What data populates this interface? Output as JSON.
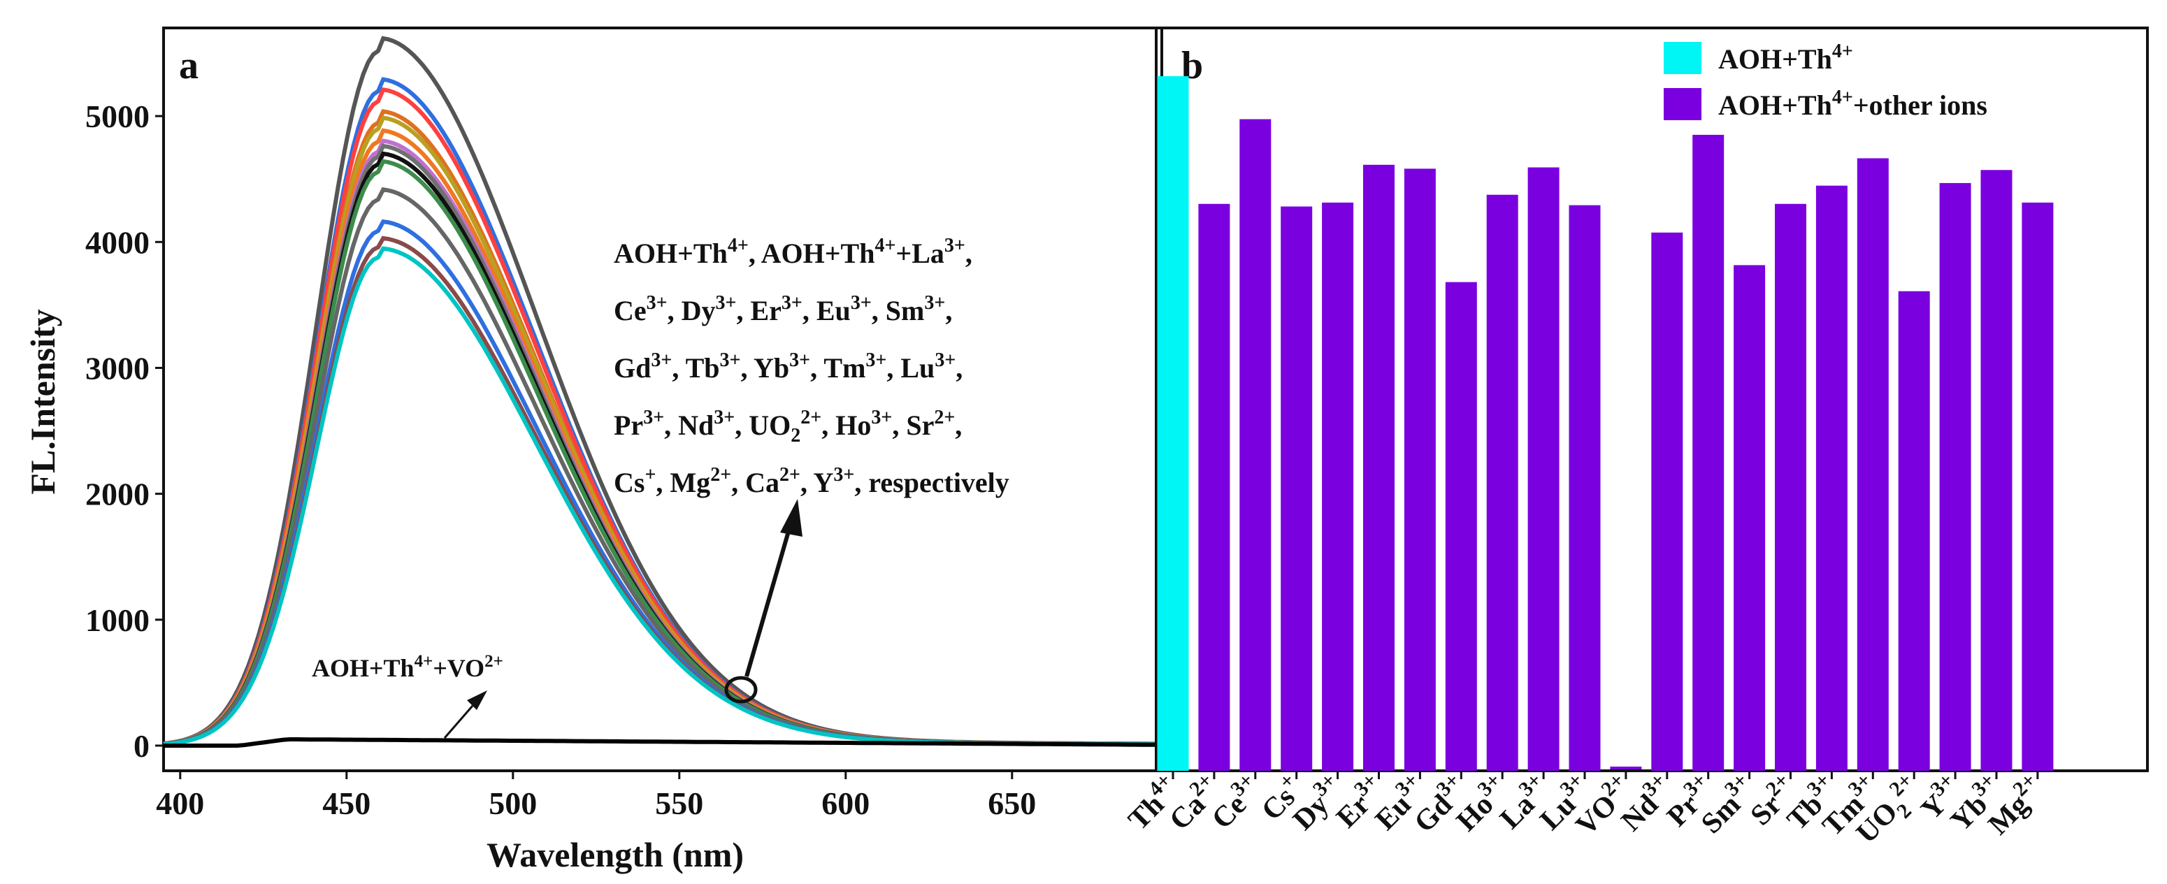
{
  "chart_data": [
    {
      "panel": "a",
      "type": "line",
      "xlabel": "Wavelength (nm)",
      "ylabel": "FL.Intensity",
      "xlim": [
        395,
        695
      ],
      "ylim": [
        -200,
        5700
      ],
      "xticks": [
        400,
        450,
        500,
        550,
        600,
        650
      ],
      "yticks": [
        0,
        1000,
        2000,
        3000,
        4000,
        5000
      ],
      "peak_wavelength": 460,
      "series": [
        {
          "name": "s1",
          "color": "#555555",
          "peak": 5520
        },
        {
          "name": "s2",
          "color": "#2F6FE0",
          "peak": 5200
        },
        {
          "name": "s3",
          "color": "#FF4040",
          "peak": 5120
        },
        {
          "name": "s4",
          "color": "#E07020",
          "peak": 4950
        },
        {
          "name": "s5",
          "color": "#B8A020",
          "peak": 4900
        },
        {
          "name": "s6",
          "color": "#F07820",
          "peak": 4800
        },
        {
          "name": "s7",
          "color": "#C070D0",
          "peak": 4720
        },
        {
          "name": "s8",
          "color": "#707070",
          "peak": 4680
        },
        {
          "name": "s9",
          "color": "#111111",
          "peak": 4620
        },
        {
          "name": "s10",
          "color": "#3C8C4C",
          "peak": 4560
        },
        {
          "name": "s11",
          "color": "#666666",
          "peak": 4340
        },
        {
          "name": "s12",
          "color": "#2F6FE0",
          "peak": 4090
        },
        {
          "name": "s13",
          "color": "#8A4A4A",
          "peak": 3960
        },
        {
          "name": "s14",
          "color": "#00C4C4",
          "peak": 3880
        },
        {
          "name": "AOH+Th4++VO2+",
          "color": "#000000",
          "peak": 50
        }
      ],
      "annotations": {
        "vo_label_main": "AOH+Th",
        "vo_sup1": "4+",
        "vo_plus": "+VO",
        "vo_sup2": "2+",
        "lines": [
          [
            {
              "t": "AOH+Th"
            },
            {
              "t": "4+",
              "sup": true
            },
            {
              "t": ",  AOH+Th"
            },
            {
              "t": "4+",
              "sup": true
            },
            {
              "t": "+La"
            },
            {
              "t": "3+",
              "sup": true
            },
            {
              "t": ","
            }
          ],
          [
            {
              "t": "Ce"
            },
            {
              "t": "3+",
              "sup": true
            },
            {
              "t": ",  Dy"
            },
            {
              "t": "3+",
              "sup": true
            },
            {
              "t": ",  Er"
            },
            {
              "t": "3+",
              "sup": true
            },
            {
              "t": ",  Eu"
            },
            {
              "t": "3+",
              "sup": true
            },
            {
              "t": ",  Sm"
            },
            {
              "t": "3+",
              "sup": true
            },
            {
              "t": ","
            }
          ],
          [
            {
              "t": "Gd"
            },
            {
              "t": "3+",
              "sup": true
            },
            {
              "t": ",  Tb"
            },
            {
              "t": "3+",
              "sup": true
            },
            {
              "t": ",  Yb"
            },
            {
              "t": "3+",
              "sup": true
            },
            {
              "t": ",  Tm"
            },
            {
              "t": "3+",
              "sup": true
            },
            {
              "t": ",  Lu"
            },
            {
              "t": "3+",
              "sup": true
            },
            {
              "t": ","
            }
          ],
          [
            {
              "t": "Pr"
            },
            {
              "t": "3+",
              "sup": true
            },
            {
              "t": ",  Nd"
            },
            {
              "t": "3+",
              "sup": true
            },
            {
              "t": ",  UO"
            },
            {
              "t": "2",
              "sub": true
            },
            {
              "t": "2+",
              "sup": true
            },
            {
              "t": ",  Ho"
            },
            {
              "t": "3+",
              "sup": true
            },
            {
              "t": ",  Sr"
            },
            {
              "t": "2+",
              "sup": true
            },
            {
              "t": ","
            }
          ],
          [
            {
              "t": "Cs"
            },
            {
              "t": "+",
              "sup": true
            },
            {
              "t": ",  Mg"
            },
            {
              "t": "2+",
              "sup": true
            },
            {
              "t": ",  Ca"
            },
            {
              "t": "2+",
              "sup": true
            },
            {
              "t": ",  Y"
            },
            {
              "t": "3+",
              "sup": true
            },
            {
              "t": ", respectively"
            }
          ]
        ]
      }
    },
    {
      "panel": "b",
      "type": "bar",
      "ylim": [
        0,
        5700
      ],
      "categories": [
        {
          "base": "Th",
          "sup": "4+"
        },
        {
          "base": "Ca",
          "sup": "2+"
        },
        {
          "base": "Ce",
          "sup": "3+"
        },
        {
          "base": "Cs",
          "sup": "+"
        },
        {
          "base": "Dy",
          "sup": "3+"
        },
        {
          "base": "Er",
          "sup": "3+"
        },
        {
          "base": "Eu",
          "sup": "3+"
        },
        {
          "base": "Gd",
          "sup": "3+"
        },
        {
          "base": "Ho",
          "sup": "3+"
        },
        {
          "base": "La",
          "sup": "3+"
        },
        {
          "base": "Lu",
          "sup": "3+"
        },
        {
          "base": "VO",
          "sup": "2+"
        },
        {
          "base": "Nd",
          "sup": "3+"
        },
        {
          "base": "Pr",
          "sup": "3+"
        },
        {
          "base": "Sm",
          "sup": "3+"
        },
        {
          "base": "Sr",
          "sup": "2+"
        },
        {
          "base": "Tb",
          "sup": "3+"
        },
        {
          "base": "Tm",
          "sup": "3+"
        },
        {
          "base": "UO",
          "sub": "2",
          "sup": "2+"
        },
        {
          "base": "Y",
          "sup": "3+"
        },
        {
          "base": "Yb",
          "sup": "3+"
        },
        {
          "base": "Mg",
          "sup": "2+"
        }
      ],
      "values": [
        5330,
        4350,
        5000,
        4330,
        4360,
        4650,
        4620,
        3750,
        4420,
        4630,
        4340,
        30,
        4130,
        4880,
        3880,
        4350,
        4490,
        4700,
        3680,
        4510,
        4610,
        4360
      ],
      "colors": {
        "reference": "#00F5F5",
        "others": "#7A00E0"
      },
      "legend": [
        {
          "label": "AOH+Th",
          "sup": "4+",
          "tail": "",
          "color": "#00F5F5"
        },
        {
          "label": "AOH+Th",
          "sup": "4+",
          "tail": "+other ions",
          "color": "#7A00E0"
        }
      ]
    }
  ]
}
